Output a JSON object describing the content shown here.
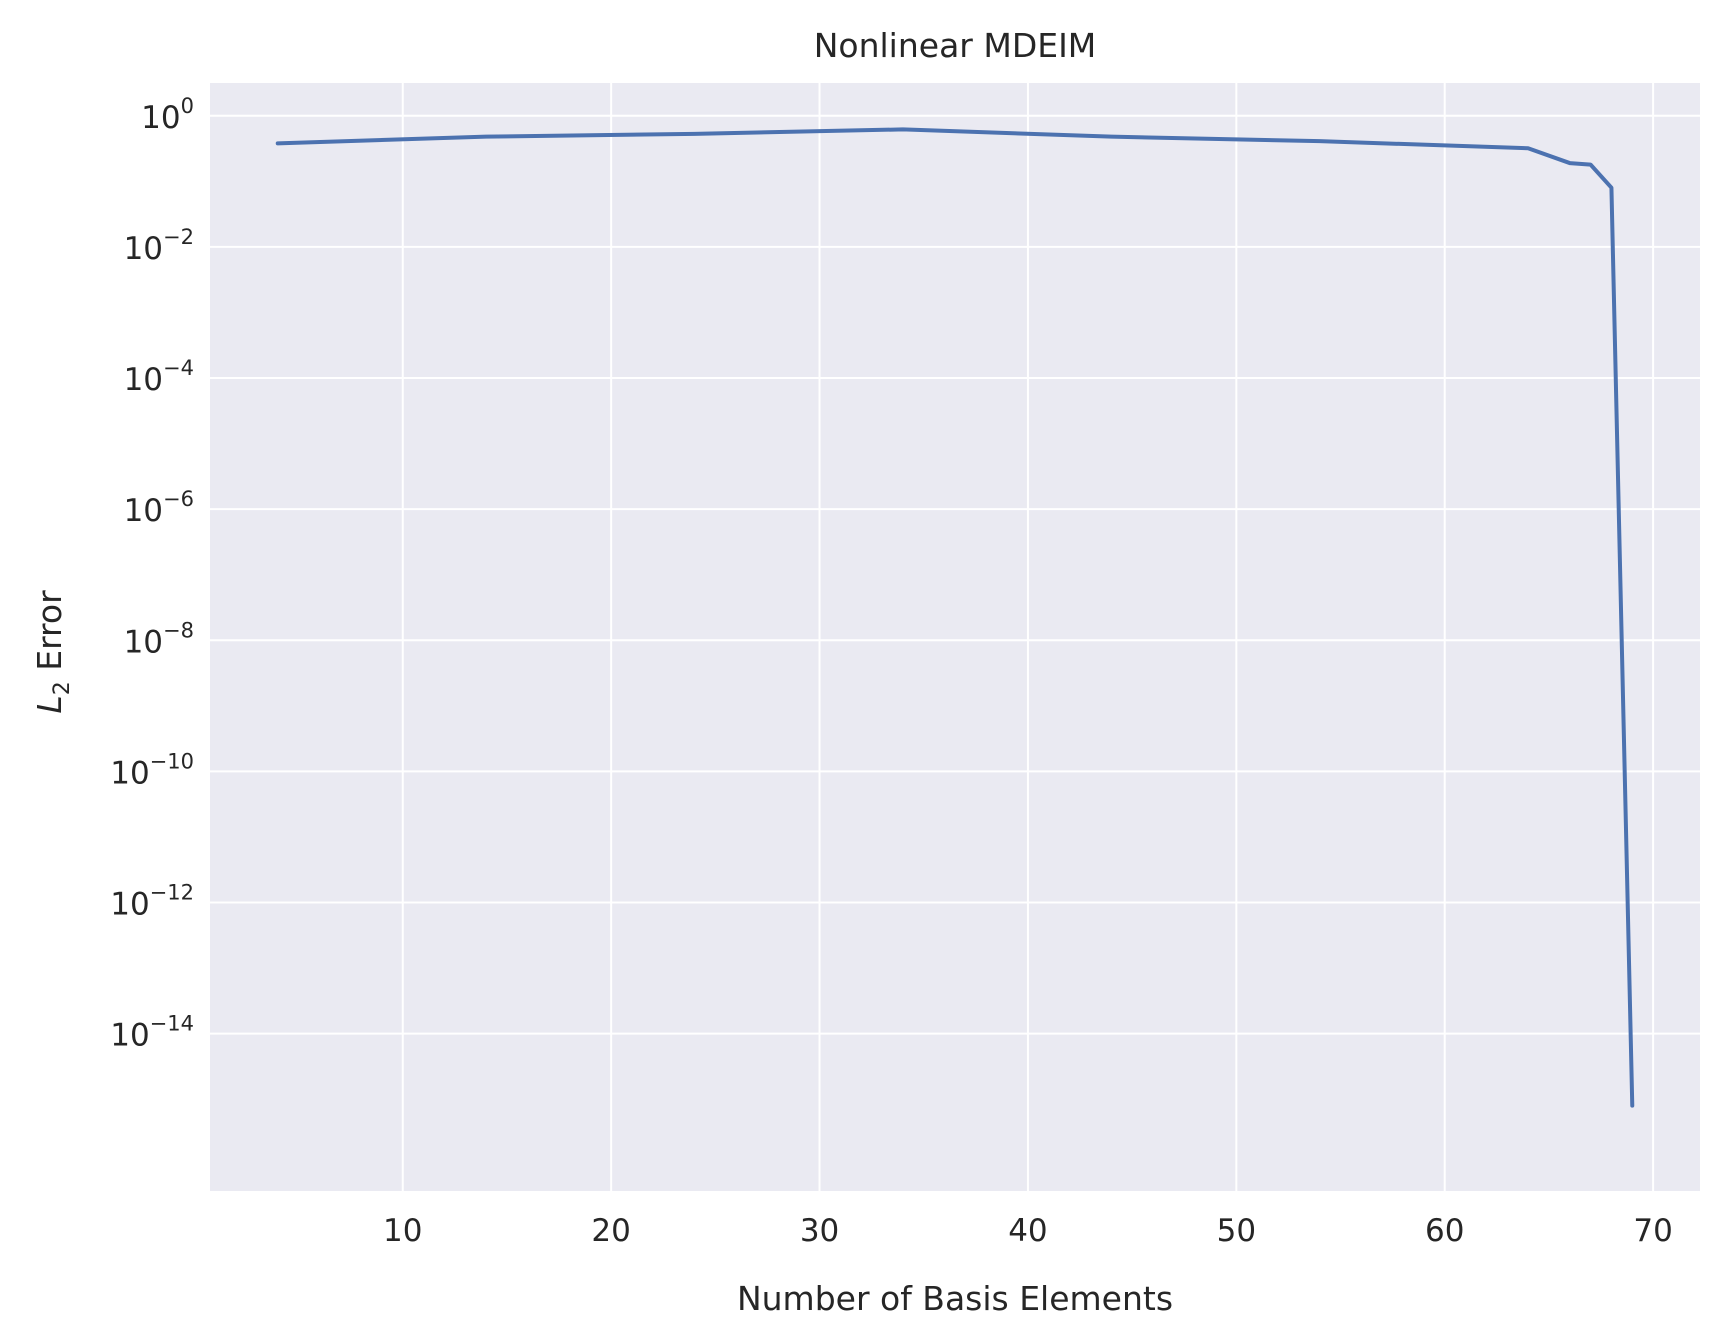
{
  "chart_data": {
    "type": "line",
    "title": "Nonlinear MDEIM",
    "xlabel": "Number of Basis Elements",
    "ylabel": {
      "base": "L",
      "subscript": "2",
      "text": " Error"
    },
    "y_scale": "log",
    "grid": true,
    "background_color": "#EAEAF2",
    "grid_color": "#FFFFFF",
    "series_color": "#4C72B0",
    "xlim": [
      0.75,
      72.25
    ],
    "ylim_log10": [
      -16.4,
      0.5
    ],
    "x_ticks": [
      10,
      20,
      30,
      40,
      50,
      60,
      70
    ],
    "x_tick_labels": [
      "10",
      "20",
      "30",
      "40",
      "50",
      "60",
      "70"
    ],
    "y_tick_exponents": [
      0,
      -2,
      -4,
      -6,
      -8,
      -10,
      -12,
      -14
    ],
    "y_tick_labels": [
      {
        "base": "10",
        "exp": "0"
      },
      {
        "base": "10",
        "exp": "−2"
      },
      {
        "base": "10",
        "exp": "−4"
      },
      {
        "base": "10",
        "exp": "−6"
      },
      {
        "base": "10",
        "exp": "−8"
      },
      {
        "base": "10",
        "exp": "−10"
      },
      {
        "base": "10",
        "exp": "−12"
      },
      {
        "base": "10",
        "exp": "−14"
      }
    ],
    "series": [
      {
        "x": [
          4,
          14,
          24,
          34,
          44,
          54,
          64,
          66,
          67,
          68,
          69
        ],
        "y": [
          0.38,
          0.48,
          0.53,
          0.62,
          0.48,
          0.41,
          0.32,
          0.19,
          0.18,
          0.08,
          8e-16
        ]
      }
    ]
  }
}
